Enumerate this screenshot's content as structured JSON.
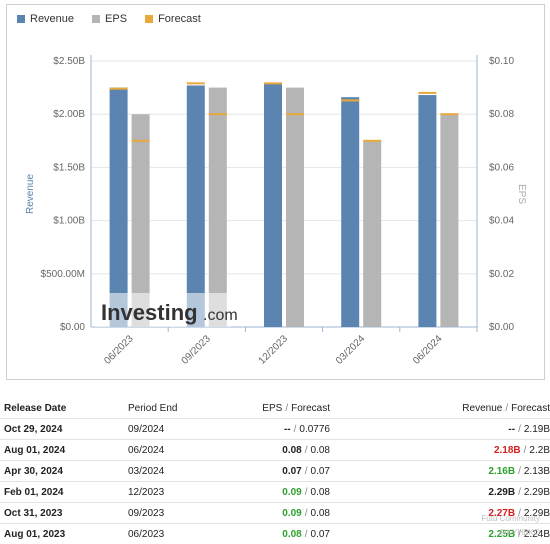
{
  "legend": {
    "revenue": "Revenue",
    "eps": "EPS",
    "forecast": "Forecast"
  },
  "colors": {
    "revenue": "#5c84b0",
    "eps": "#b5b5b5",
    "forecast": "#e8a93a",
    "positive": "#2da12d",
    "negative": "#d62020"
  },
  "logo": {
    "brand": "Investing",
    "suffix": ".com"
  },
  "chart_data": {
    "type": "bar",
    "categories": [
      "06/2023",
      "09/2023",
      "12/2023",
      "03/2024",
      "06/2024"
    ],
    "series": [
      {
        "name": "Revenue",
        "values": [
          2.25,
          2.27,
          2.29,
          2.16,
          2.18
        ],
        "forecast": [
          2.24,
          2.29,
          2.29,
          2.13,
          2.2
        ],
        "axis": "left"
      },
      {
        "name": "EPS",
        "values": [
          0.08,
          0.09,
          0.09,
          0.07,
          0.08
        ],
        "forecast": [
          0.07,
          0.08,
          0.08,
          0.07,
          0.08
        ],
        "axis": "right"
      }
    ],
    "ylabel": "Revenue",
    "y2label": "EPS",
    "ylim": [
      0,
      2.5
    ],
    "y2lim": [
      0,
      0.1
    ],
    "yticks": [
      "$0.00",
      "$500.00M",
      "$1.00B",
      "$1.50B",
      "$2.00B",
      "$2.50B"
    ],
    "y2ticks": [
      "$0.00",
      "$0.02",
      "$0.04",
      "$0.06",
      "$0.08",
      "$0.10"
    ],
    "grid": true,
    "legend_position": "top-left"
  },
  "table": {
    "headers": {
      "release_date": "Release Date",
      "period_end": "Period End",
      "eps": "EPS",
      "eps_forecast": "Forecast",
      "revenue": "Revenue",
      "revenue_forecast": "Forecast",
      "sep": "/"
    },
    "rows": [
      {
        "release": "Oct 29, 2024",
        "period": "09/2024",
        "eps": "--",
        "eps_fc": "0.0776",
        "eps_color": "",
        "rev": "--",
        "rev_fc": "2.19B",
        "rev_color": ""
      },
      {
        "release": "Aug 01, 2024",
        "period": "06/2024",
        "eps": "0.08",
        "eps_fc": "0.08",
        "eps_color": "",
        "rev": "2.18B",
        "rev_fc": "2.2B",
        "rev_color": "red"
      },
      {
        "release": "Apr 30, 2024",
        "period": "03/2024",
        "eps": "0.07",
        "eps_fc": "0.07",
        "eps_color": "",
        "rev": "2.16B",
        "rev_fc": "2.13B",
        "rev_color": "green"
      },
      {
        "release": "Feb 01, 2024",
        "period": "12/2023",
        "eps": "0.09",
        "eps_fc": "0.08",
        "eps_color": "green",
        "rev": "2.29B",
        "rev_fc": "2.29B",
        "rev_color": ""
      },
      {
        "release": "Oct 31, 2023",
        "period": "09/2023",
        "eps": "0.09",
        "eps_fc": "0.08",
        "eps_color": "green",
        "rev": "2.27B",
        "rev_fc": "2.29B",
        "rev_color": "red"
      },
      {
        "release": "Aug 01, 2023",
        "period": "06/2023",
        "eps": "0.08",
        "eps_fc": "0.07",
        "eps_color": "green",
        "rev": "2.25B",
        "rev_fc": "2.24B",
        "rev_color": "green"
      }
    ]
  },
  "watermark": {
    "line1": "Futu Community",
    "line2": "@KYHBKO"
  }
}
